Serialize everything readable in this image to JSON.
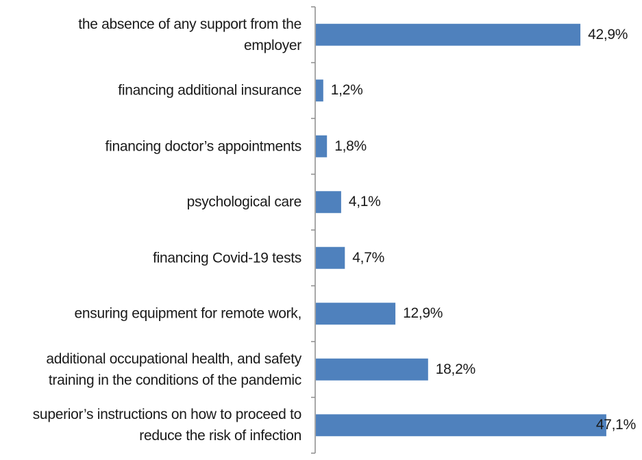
{
  "chart_data": {
    "type": "bar",
    "orientation": "horizontal",
    "categories": [
      "the absence of any support from the employer",
      "financing additional insurance",
      "financing doctor’s appointments",
      "psychological care",
      "financing Covid-19 tests",
      "ensuring equipment for remote work,",
      "additional occupational health, and safety training in the conditions of the pandemic",
      "superior’s instructions on how to proceed to reduce the risk of infection"
    ],
    "category_lines": [
      [
        "the absence of any support from the",
        "employer"
      ],
      [
        "financing additional insurance"
      ],
      [
        "financing doctor’s appointments"
      ],
      [
        "psychological care"
      ],
      [
        "financing Covid-19 tests"
      ],
      [
        "ensuring equipment for remote work,"
      ],
      [
        "additional occupational health, and safety",
        "training in the conditions of the pandemic"
      ],
      [
        "superior’s instructions on how to proceed to",
        "reduce the risk of infection"
      ]
    ],
    "values": [
      42.9,
      1.2,
      1.8,
      4.1,
      4.7,
      12.9,
      18.2,
      47.1
    ],
    "data_labels": [
      "42,9%",
      "1,2%",
      "1,8%",
      "4,1%",
      "4,7%",
      "12,9%",
      "18,2%",
      "47,1%"
    ],
    "title": "",
    "xlabel": "",
    "ylabel": "",
    "xlim": [
      0,
      50
    ],
    "grid": false,
    "legend": "none",
    "bar_color": "#4f81bd",
    "axis_color": "#8c8c8c"
  }
}
